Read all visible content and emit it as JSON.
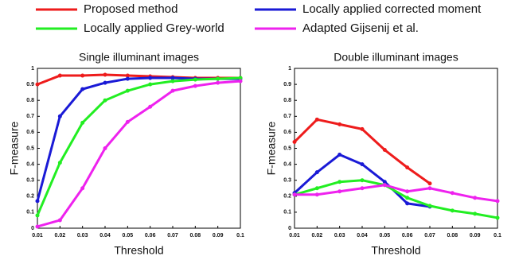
{
  "chart_data": [
    {
      "type": "line",
      "title": "Single illuminant images",
      "xlabel": "Threshold",
      "ylabel": "F-measure",
      "x": [
        0.01,
        0.02,
        0.03,
        0.04,
        0.05,
        0.06,
        0.07,
        0.08,
        0.09,
        0.1
      ],
      "xlim": [
        0.01,
        0.1
      ],
      "xticks": [
        0.01,
        0.02,
        0.03,
        0.04,
        0.05,
        0.06,
        0.07,
        0.08,
        0.09,
        0.1
      ],
      "ylim": [
        0,
        1
      ],
      "yticks": [
        0,
        0.1,
        0.2,
        0.3,
        0.4,
        0.5,
        0.6,
        0.7,
        0.8,
        0.9,
        1
      ],
      "series": [
        {
          "name": "Proposed method",
          "color": "#ee1c1c",
          "values": [
            0.9,
            0.955,
            0.955,
            0.96,
            0.955,
            0.95,
            0.945,
            0.94,
            0.94,
            0.94
          ]
        },
        {
          "name": "Locally applied corrected moment",
          "color": "#1a1ad6",
          "values": [
            0.17,
            0.7,
            0.87,
            0.91,
            0.935,
            0.94,
            0.94,
            0.935,
            0.935,
            0.935
          ]
        },
        {
          "name": "Locally applied Grey-world",
          "color": "#22ee22",
          "values": [
            0.08,
            0.41,
            0.66,
            0.8,
            0.86,
            0.9,
            0.92,
            0.93,
            0.935,
            0.94
          ]
        },
        {
          "name": "Adapted Gijsenij et al.",
          "color": "#ee22ee",
          "values": [
            0.01,
            0.05,
            0.25,
            0.5,
            0.665,
            0.76,
            0.86,
            0.89,
            0.91,
            0.92
          ]
        }
      ]
    },
    {
      "type": "line",
      "title": "Double illuminant images",
      "xlabel": "Threshold",
      "ylabel": "F-measure",
      "x": [
        0.01,
        0.02,
        0.03,
        0.04,
        0.05,
        0.06,
        0.07,
        0.08,
        0.09,
        0.1
      ],
      "xlim": [
        0.01,
        0.1
      ],
      "xticks": [
        0.01,
        0.02,
        0.03,
        0.04,
        0.05,
        0.06,
        0.07,
        0.08,
        0.09,
        0.1
      ],
      "ylim": [
        0,
        1
      ],
      "yticks": [
        0,
        0.1,
        0.2,
        0.3,
        0.4,
        0.5,
        0.6,
        0.7,
        0.8,
        0.9,
        1
      ],
      "series": [
        {
          "color": "#ee1c1c",
          "values": [
            0.54,
            0.68,
            0.65,
            0.62,
            0.49,
            0.38,
            0.28,
            null,
            null,
            null
          ]
        },
        {
          "color": "#1a1ad6",
          "values": [
            0.22,
            0.35,
            0.46,
            0.4,
            0.29,
            0.155,
            0.135,
            null,
            null,
            null
          ]
        },
        {
          "color": "#22ee22",
          "values": [
            0.21,
            0.25,
            0.29,
            0.3,
            0.27,
            0.19,
            0.14,
            0.11,
            0.09,
            0.065
          ]
        },
        {
          "color": "#ee22ee",
          "values": [
            0.21,
            0.21,
            0.23,
            0.25,
            0.27,
            0.23,
            0.25,
            0.22,
            0.19,
            0.17
          ]
        }
      ]
    }
  ]
}
